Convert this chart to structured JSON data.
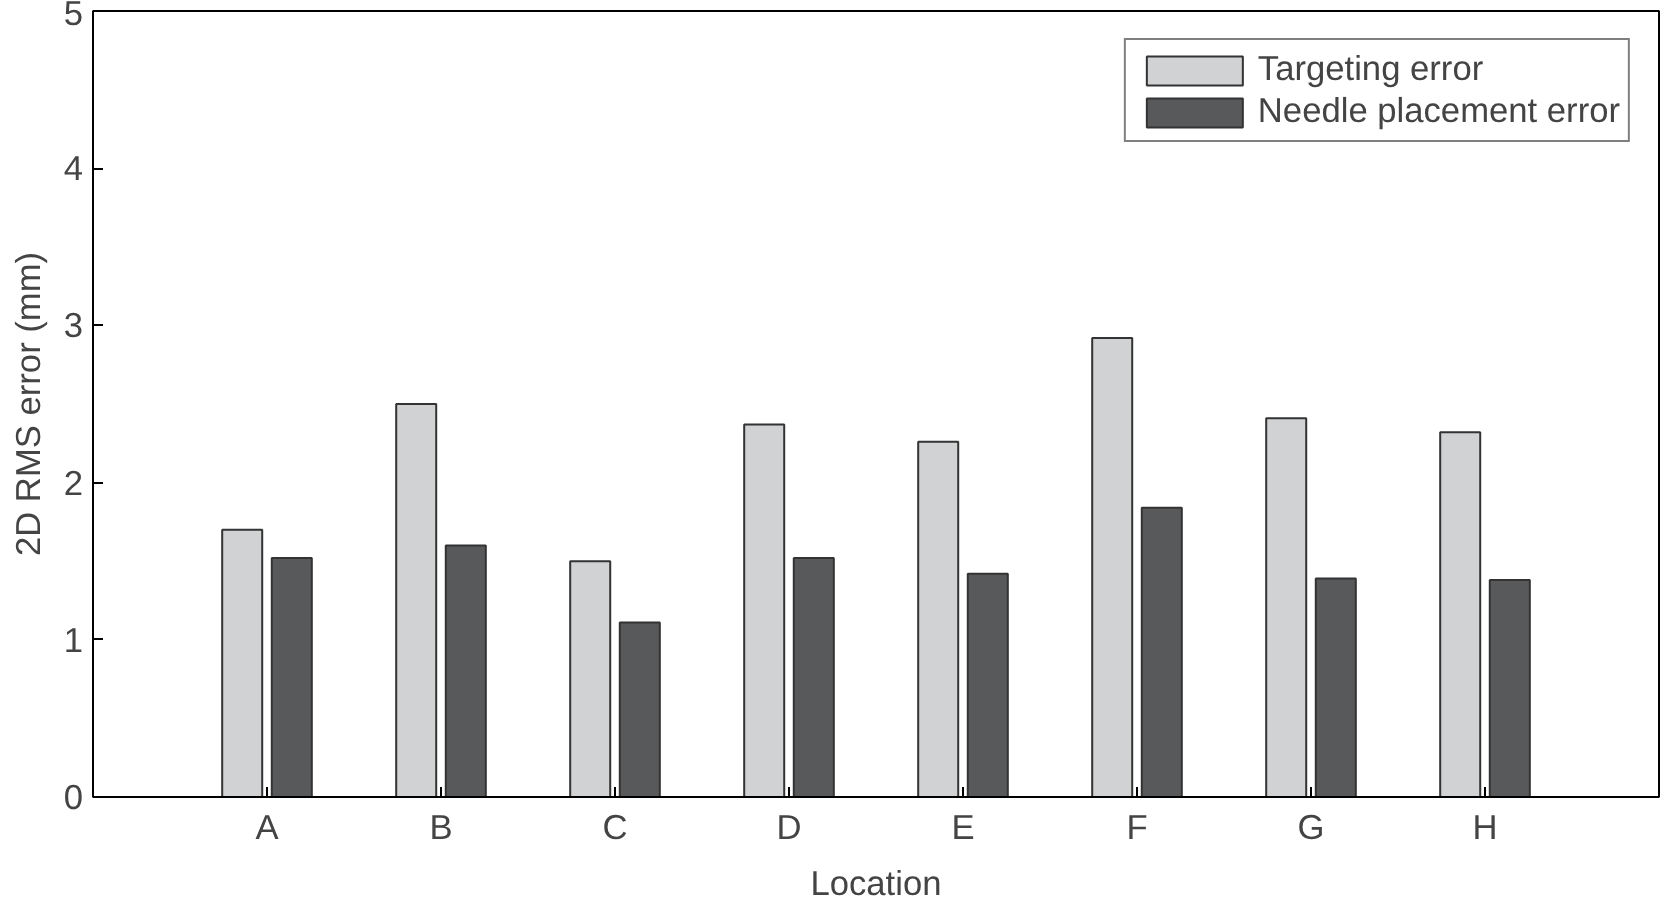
{
  "chart_data": {
    "type": "bar",
    "xlabel": "Location",
    "ylabel": "2D RMS error (mm)",
    "categories": [
      "A",
      "B",
      "C",
      "D",
      "E",
      "F",
      "G",
      "H"
    ],
    "series": [
      {
        "name": "Targeting error",
        "color": "#d1d2d4",
        "values": [
          1.7,
          2.5,
          1.5,
          2.37,
          2.26,
          2.92,
          2.41,
          2.32
        ]
      },
      {
        "name": "Needle placement error",
        "color": "#58595b",
        "values": [
          1.52,
          1.6,
          1.11,
          1.52,
          1.42,
          1.84,
          1.39,
          1.38
        ]
      }
    ],
    "ylim": [
      0,
      5
    ],
    "yticks": [
      0,
      1,
      2,
      3,
      4,
      5
    ],
    "grid": false,
    "legend": "top right"
  }
}
